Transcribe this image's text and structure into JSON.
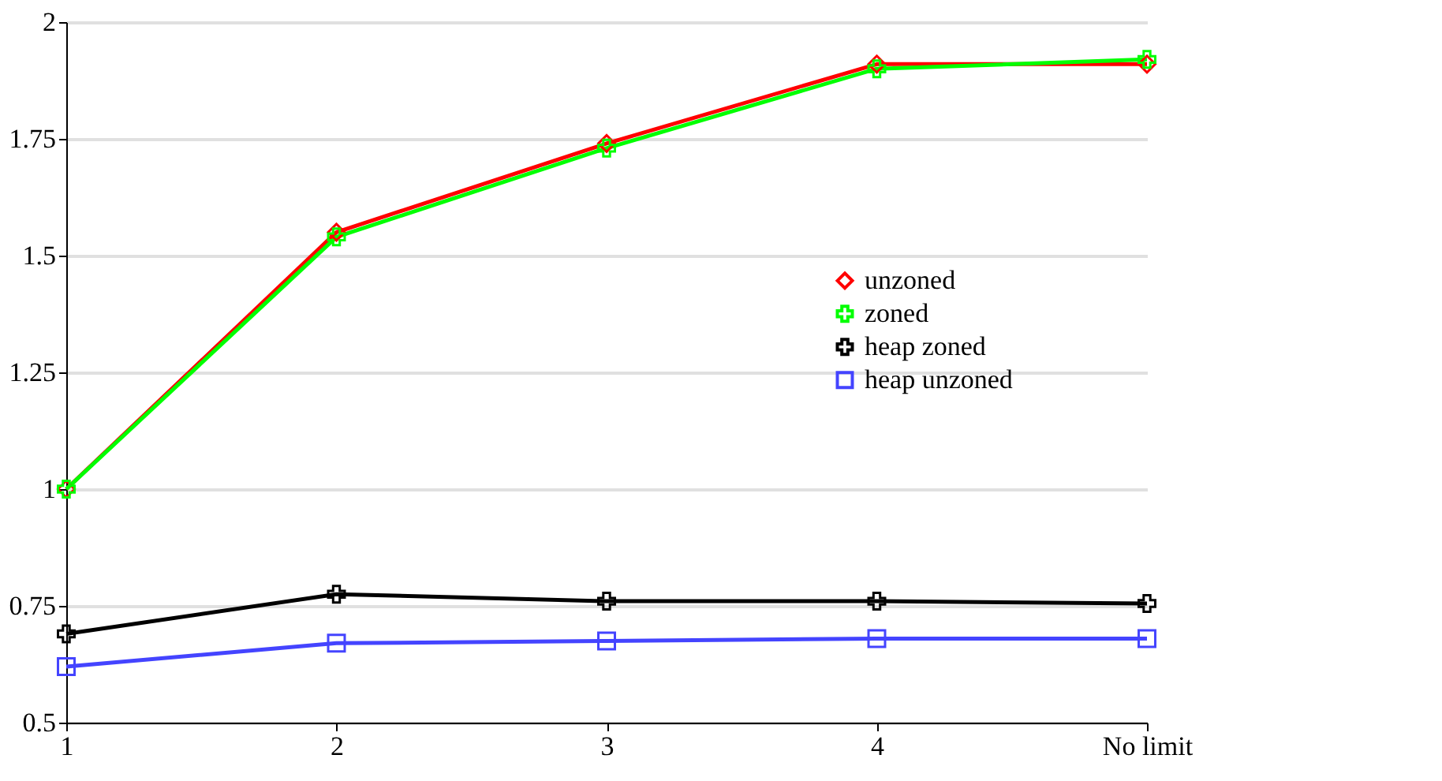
{
  "chart_data": {
    "type": "line",
    "categories": [
      "1",
      "2",
      "3",
      "4",
      "No limit"
    ],
    "series": [
      {
        "name": "unzoned",
        "color": "#ff0000",
        "marker": "diamond",
        "values": [
          1.0,
          1.55,
          1.74,
          1.91,
          1.91
        ]
      },
      {
        "name": "zoned",
        "color": "#00ff00",
        "marker": "cross",
        "values": [
          1.0,
          1.54,
          1.73,
          1.9,
          1.92
        ]
      },
      {
        "name": "heap zoned",
        "color": "#000000",
        "marker": "cross",
        "values": [
          0.69,
          0.775,
          0.76,
          0.76,
          0.755
        ]
      },
      {
        "name": "heap unzoned",
        "color": "#4444ff",
        "marker": "square",
        "values": [
          0.62,
          0.67,
          0.675,
          0.68,
          0.68
        ]
      }
    ],
    "ylim": [
      0.5,
      2
    ],
    "yticks": [
      0.5,
      0.75,
      1,
      1.25,
      1.5,
      1.75,
      2
    ],
    "grid": "y",
    "legend": "right"
  }
}
